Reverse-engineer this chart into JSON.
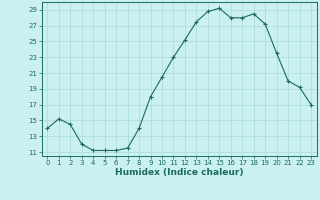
{
  "x": [
    0,
    1,
    2,
    3,
    4,
    5,
    6,
    7,
    8,
    9,
    10,
    11,
    12,
    13,
    14,
    15,
    16,
    17,
    18,
    19,
    20,
    21,
    22,
    23
  ],
  "y": [
    14,
    15.2,
    14.5,
    12,
    11.2,
    11.2,
    11.2,
    11.5,
    14,
    18,
    20.5,
    23,
    25.2,
    27.5,
    28.8,
    29.2,
    28,
    28,
    28.5,
    27.2,
    23.5,
    20,
    19.2,
    17
  ],
  "line_color": "#1a6b5e",
  "marker": "+",
  "markersize": 3,
  "linewidth": 0.8,
  "bg_color": "#caf0f0",
  "grid_color": "#aadada",
  "xlabel": "Humidex (Indice chaleur)",
  "xlim": [
    -0.5,
    23.5
  ],
  "ylim": [
    10.5,
    30
  ],
  "yticks": [
    11,
    13,
    15,
    17,
    19,
    21,
    23,
    25,
    27,
    29
  ],
  "xticks": [
    0,
    1,
    2,
    3,
    4,
    5,
    6,
    7,
    8,
    9,
    10,
    11,
    12,
    13,
    14,
    15,
    16,
    17,
    18,
    19,
    20,
    21,
    22,
    23
  ],
  "tick_color": "#1a6b5e",
  "label_color": "#1a6b5e",
  "spine_color": "#1a6b5e",
  "xlabel_fontsize": 6.5,
  "tick_fontsize": 5
}
